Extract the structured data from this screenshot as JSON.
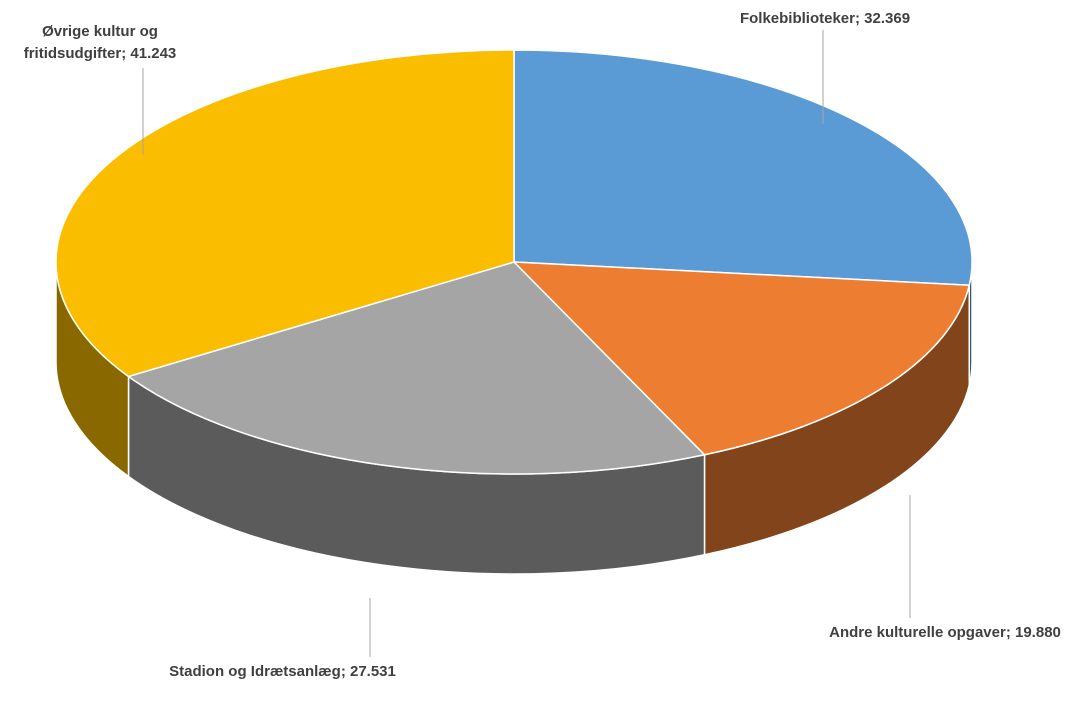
{
  "chart_data": {
    "type": "pie3d",
    "categories": [
      "Folkebiblioteker",
      "Andre kulturelle opgaver",
      "Stadion og Idrætsanlæg",
      "Øvrige kultur og fritidsudgifter"
    ],
    "values": [
      32369,
      19880,
      27531,
      41243
    ],
    "value_labels": [
      "32.369",
      "19.880",
      "27.531",
      "41.243"
    ],
    "colors": [
      "#5b9bd5",
      "#ed7d31",
      "#a5a5a5",
      "#fbbd00"
    ]
  }
}
